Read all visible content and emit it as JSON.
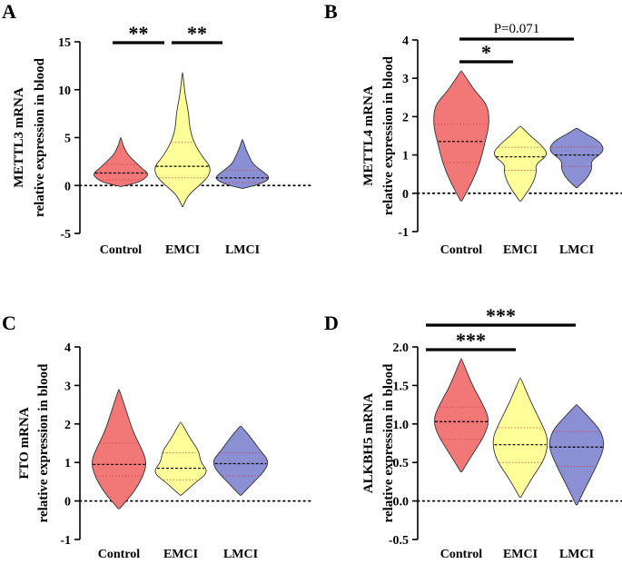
{
  "chart_data": [
    {
      "panel": "A",
      "type": "violin",
      "ylabel_lines": [
        "METTL3 mRNA",
        "relative expression in blood"
      ],
      "categories": [
        "Control",
        "EMCI",
        "LMCI"
      ],
      "yticks": [
        -5,
        0,
        5,
        10,
        15
      ],
      "ylim": [
        -5,
        15
      ],
      "zero_line": true,
      "violins": [
        {
          "name": "Control",
          "color": "#f27878",
          "min": -0.1,
          "max": 5.0,
          "median": 1.3,
          "q1": 0.6,
          "q3": 2.2,
          "profile": [
            [
              -0.1,
              0.02
            ],
            [
              0.3,
              0.6
            ],
            [
              0.7,
              0.85
            ],
            [
              1.2,
              1.0
            ],
            [
              1.8,
              0.75
            ],
            [
              2.5,
              0.5
            ],
            [
              3.2,
              0.25
            ],
            [
              4.2,
              0.08
            ],
            [
              5.0,
              0.01
            ]
          ]
        },
        {
          "name": "EMCI",
          "color": "#ffff99",
          "min": -2.2,
          "max": 11.8,
          "median": 2.0,
          "q1": 0.8,
          "q3": 4.5,
          "profile": [
            [
              -2.2,
              0.01
            ],
            [
              -1.0,
              0.2
            ],
            [
              0.0,
              0.6
            ],
            [
              1.0,
              0.95
            ],
            [
              2.0,
              1.0
            ],
            [
              3.0,
              0.7
            ],
            [
              4.5,
              0.4
            ],
            [
              6.0,
              0.25
            ],
            [
              7.5,
              0.22
            ],
            [
              9.0,
              0.12
            ],
            [
              10.5,
              0.05
            ],
            [
              11.8,
              0.01
            ]
          ]
        },
        {
          "name": "LMCI",
          "color": "#8b8fd4",
          "min": -0.3,
          "max": 4.8,
          "median": 0.8,
          "q1": 0.3,
          "q3": 1.6,
          "profile": [
            [
              -0.3,
              0.02
            ],
            [
              0.2,
              0.7
            ],
            [
              0.8,
              1.0
            ],
            [
              1.5,
              0.7
            ],
            [
              2.3,
              0.35
            ],
            [
              3.0,
              0.25
            ],
            [
              3.8,
              0.12
            ],
            [
              4.8,
              0.01
            ]
          ]
        }
      ],
      "significance": [
        {
          "from": 0,
          "to": 1,
          "label": "**"
        },
        {
          "from": 1,
          "to": 2,
          "label": "**"
        }
      ]
    },
    {
      "panel": "B",
      "type": "violin",
      "ylabel_lines": [
        "METTL4 mRNA",
        "relative expression in blood"
      ],
      "categories": [
        "Control",
        "EMCI",
        "LMCI"
      ],
      "yticks": [
        -1,
        0,
        1,
        2,
        3,
        4
      ],
      "ylim": [
        -1,
        4
      ],
      "zero_line": true,
      "violins": [
        {
          "name": "Control",
          "color": "#f27878",
          "min": -0.2,
          "max": 3.2,
          "median": 1.35,
          "q1": 0.8,
          "q3": 1.8,
          "profile": [
            [
              -0.2,
              0.02
            ],
            [
              0.3,
              0.35
            ],
            [
              0.8,
              0.6
            ],
            [
              1.3,
              0.75
            ],
            [
              1.8,
              0.9
            ],
            [
              2.3,
              0.85
            ],
            [
              2.7,
              0.4
            ],
            [
              3.2,
              0.01
            ]
          ]
        },
        {
          "name": "EMCI",
          "color": "#ffff99",
          "min": -0.2,
          "max": 1.75,
          "median": 0.95,
          "q1": 0.6,
          "q3": 1.2,
          "profile": [
            [
              -0.2,
              0.02
            ],
            [
              0.2,
              0.35
            ],
            [
              0.55,
              0.5
            ],
            [
              0.75,
              0.45
            ],
            [
              1.0,
              0.85
            ],
            [
              1.25,
              0.65
            ],
            [
              1.5,
              0.3
            ],
            [
              1.75,
              0.01
            ]
          ]
        },
        {
          "name": "LMCI",
          "color": "#8b8fd4",
          "min": 0.15,
          "max": 1.7,
          "median": 1.0,
          "q1": 0.7,
          "q3": 1.2,
          "profile": [
            [
              0.15,
              0.02
            ],
            [
              0.4,
              0.35
            ],
            [
              0.65,
              0.5
            ],
            [
              0.85,
              0.45
            ],
            [
              1.1,
              0.9
            ],
            [
              1.35,
              0.75
            ],
            [
              1.55,
              0.3
            ],
            [
              1.7,
              0.01
            ]
          ]
        }
      ],
      "significance": [
        {
          "from": 0,
          "to": 1,
          "label": "*"
        },
        {
          "from": 0,
          "to": 2,
          "label": "P=0.071"
        }
      ]
    },
    {
      "panel": "C",
      "type": "violin",
      "ylabel_lines": [
        "FTO mRNA",
        "relative expression in blood"
      ],
      "categories": [
        "Control",
        "EMCI",
        "LMCI"
      ],
      "yticks": [
        -1,
        0,
        1,
        2,
        3,
        4
      ],
      "ylim": [
        -1,
        4
      ],
      "zero_line": true,
      "violins": [
        {
          "name": "Control",
          "color": "#f27878",
          "min": -0.2,
          "max": 2.9,
          "median": 0.95,
          "q1": 0.65,
          "q3": 1.5,
          "profile": [
            [
              -0.2,
              0.02
            ],
            [
              0.2,
              0.45
            ],
            [
              0.6,
              0.75
            ],
            [
              1.0,
              0.9
            ],
            [
              1.4,
              0.7
            ],
            [
              1.8,
              0.45
            ],
            [
              2.3,
              0.25
            ],
            [
              2.9,
              0.01
            ]
          ]
        },
        {
          "name": "EMCI",
          "color": "#ffff99",
          "min": 0.15,
          "max": 2.05,
          "median": 0.85,
          "q1": 0.55,
          "q3": 1.25,
          "profile": [
            [
              0.15,
              0.02
            ],
            [
              0.45,
              0.4
            ],
            [
              0.75,
              0.85
            ],
            [
              1.0,
              0.6
            ],
            [
              1.3,
              0.55
            ],
            [
              1.6,
              0.3
            ],
            [
              2.05,
              0.01
            ]
          ]
        },
        {
          "name": "LMCI",
          "color": "#8b8fd4",
          "min": 0.15,
          "max": 1.95,
          "median": 0.97,
          "q1": 0.65,
          "q3": 1.25,
          "profile": [
            [
              0.15,
              0.02
            ],
            [
              0.45,
              0.35
            ],
            [
              0.8,
              0.75
            ],
            [
              1.05,
              0.85
            ],
            [
              1.3,
              0.6
            ],
            [
              1.6,
              0.35
            ],
            [
              1.95,
              0.01
            ]
          ]
        }
      ],
      "significance": []
    },
    {
      "panel": "D",
      "type": "violin",
      "ylabel_lines": [
        "ALKBH5 mRNA",
        "relative expression in blood"
      ],
      "categories": [
        "Control",
        "EMCI",
        "LMCI"
      ],
      "yticks": [
        -0.5,
        0.0,
        0.5,
        1.0,
        1.5,
        2.0
      ],
      "ytick_labels": [
        "-0.5",
        "0.0",
        "0.5",
        "1.0",
        "1.5",
        "2.0"
      ],
      "ylim": [
        -0.5,
        2.0
      ],
      "zero_line": true,
      "violins": [
        {
          "name": "Control",
          "color": "#f27878",
          "min": 0.38,
          "max": 1.85,
          "median": 1.03,
          "q1": 0.8,
          "q3": 1.22,
          "profile": [
            [
              0.38,
              0.02
            ],
            [
              0.6,
              0.35
            ],
            [
              0.85,
              0.75
            ],
            [
              1.05,
              0.9
            ],
            [
              1.25,
              0.7
            ],
            [
              1.5,
              0.35
            ],
            [
              1.85,
              0.01
            ]
          ]
        },
        {
          "name": "EMCI",
          "color": "#ffff99",
          "min": 0.05,
          "max": 1.6,
          "median": 0.73,
          "q1": 0.5,
          "q3": 0.95,
          "profile": [
            [
              0.05,
              0.02
            ],
            [
              0.3,
              0.35
            ],
            [
              0.55,
              0.75
            ],
            [
              0.8,
              0.85
            ],
            [
              1.0,
              0.65
            ],
            [
              1.3,
              0.3
            ],
            [
              1.6,
              0.01
            ]
          ]
        },
        {
          "name": "LMCI",
          "color": "#8b8fd4",
          "min": -0.05,
          "max": 1.25,
          "median": 0.7,
          "q1": 0.45,
          "q3": 0.9,
          "profile": [
            [
              -0.05,
              0.02
            ],
            [
              0.2,
              0.3
            ],
            [
              0.45,
              0.6
            ],
            [
              0.7,
              0.85
            ],
            [
              0.9,
              0.75
            ],
            [
              1.05,
              0.45
            ],
            [
              1.25,
              0.01
            ]
          ]
        }
      ],
      "significance": [
        {
          "from": 0,
          "to": 1,
          "label": "***"
        },
        {
          "from": 0,
          "to": 2,
          "label": "***"
        }
      ]
    }
  ]
}
